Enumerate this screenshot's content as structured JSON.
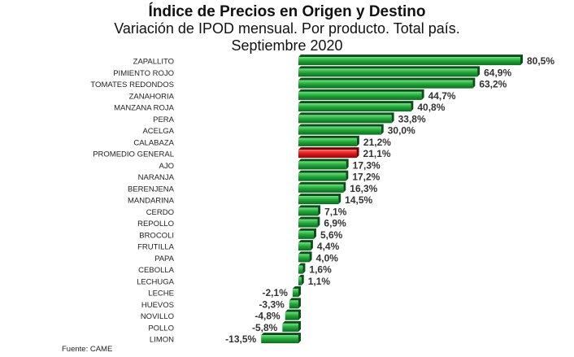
{
  "title": "Índice de Precios en Origen y Destino",
  "subtitle": "Variación de IPOD mensual. Por producto. Total país.",
  "period": "Septiembre 2020",
  "source": "Fuente: CAME",
  "colors": {
    "positive": "#22a83a",
    "highlight": "#e01b1b"
  },
  "chart_data": {
    "type": "bar",
    "orientation": "horizontal",
    "title": "Índice de Precios en Origen y Destino",
    "subtitle": "Variación de IPOD mensual. Por producto. Total país. Septiembre 2020",
    "categories": [
      "ZAPALLITO",
      "PIMIENTO ROJO",
      "TOMATES REDONDOS",
      "ZANAHORIA",
      "MANZANA ROJA",
      "PERA",
      "ACELGA",
      "CALABAZA",
      "PROMEDIO GENERAL",
      "AJO",
      "NARANJA",
      "BERENJENA",
      "MANDARINA",
      "CERDO",
      "REPOLLO",
      "BROCOLI",
      "FRUTILLA",
      "PAPA",
      "CEBOLLA",
      "LECHUGA",
      "LECHE",
      "HUEVOS",
      "NOVILLO",
      "POLLO",
      "LIMON"
    ],
    "values": [
      80.5,
      64.9,
      63.2,
      44.7,
      40.8,
      33.8,
      30.0,
      21.2,
      21.1,
      17.3,
      17.2,
      16.3,
      14.5,
      7.1,
      6.9,
      5.6,
      4.4,
      4.0,
      1.6,
      1.1,
      -2.1,
      -3.3,
      -4.8,
      -5.8,
      -13.5
    ],
    "labels": [
      "80,5%",
      "64,9%",
      "63,2%",
      "44,7%",
      "40,8%",
      "33,8%",
      "30,0%",
      "21,2%",
      "21,1%",
      "17,3%",
      "17,2%",
      "16,3%",
      "14,5%",
      "7,1%",
      "6,9%",
      "5,6%",
      "4,4%",
      "4,0%",
      "1,6%",
      "1,1%",
      "-2,1%",
      "-3,3%",
      "-4,8%",
      "-5,8%",
      "-13,5%"
    ],
    "highlight": "PROMEDIO GENERAL",
    "grid": false,
    "legend": "none"
  }
}
